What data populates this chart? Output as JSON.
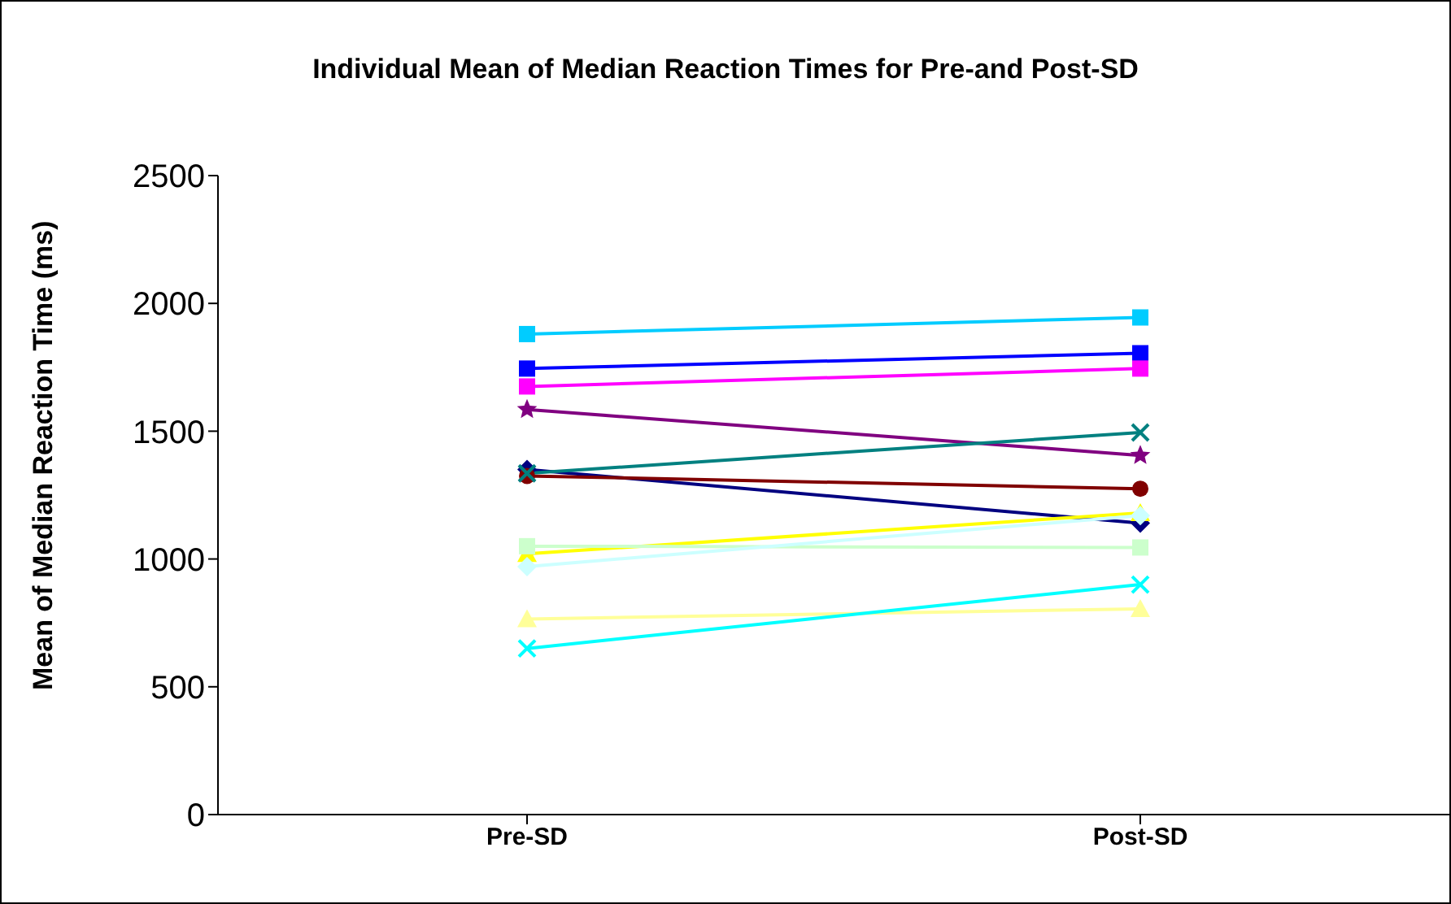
{
  "chart_data": {
    "type": "line",
    "title": "Individual Mean of Median Reaction Times for Pre-and Post-SD",
    "ylabel": "Mean of Median Reaction Time (ms)",
    "categories": [
      "Pre-SD",
      "Post-SD"
    ],
    "ylim": [
      0,
      2500
    ],
    "yticks": [
      0,
      500,
      1000,
      1500,
      2000,
      2500
    ],
    "grid": false,
    "legend": false,
    "series": [
      {
        "color": "#00ccff",
        "marker": "square",
        "values": [
          1880,
          1945
        ]
      },
      {
        "color": "#0000ff",
        "marker": "square",
        "values": [
          1745,
          1805
        ]
      },
      {
        "color": "#ff00ff",
        "marker": "square",
        "values": [
          1675,
          1745
        ]
      },
      {
        "color": "#800080",
        "marker": "star",
        "values": [
          1585,
          1405
        ]
      },
      {
        "color": "#000080",
        "marker": "diamond",
        "values": [
          1350,
          1140
        ]
      },
      {
        "color": "#800000",
        "marker": "circle",
        "values": [
          1325,
          1275
        ]
      },
      {
        "color": "#008080",
        "marker": "cross",
        "values": [
          1335,
          1495
        ]
      },
      {
        "color": "#ffff00",
        "marker": "triangle",
        "values": [
          1020,
          1180
        ]
      },
      {
        "color": "#ccffcc",
        "marker": "square",
        "values": [
          1050,
          1045
        ]
      },
      {
        "color": "#ccffff",
        "marker": "diamond",
        "values": [
          970,
          1170
        ]
      },
      {
        "color": "#ffff99",
        "marker": "triangle",
        "values": [
          765,
          805
        ]
      },
      {
        "color": "#00ffff",
        "marker": "cross",
        "values": [
          650,
          900
        ]
      }
    ]
  }
}
